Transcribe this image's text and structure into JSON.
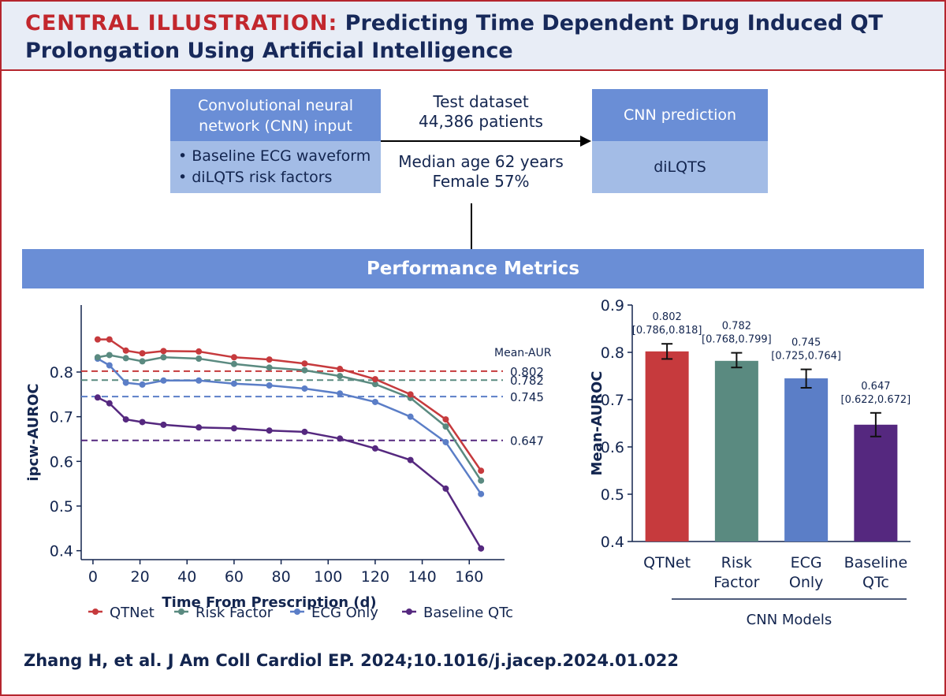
{
  "header": {
    "title_prefix": "CENTRAL ILLUSTRATION:",
    "title_line1": "Predicting Time Dependent Drug Induced QT",
    "title_line2": "Prolongation Using Artificial Intelligence"
  },
  "flow": {
    "input_head_line1": "Convolutional neural",
    "input_head_line2": "network (CNN) input",
    "input_item1": "• Baseline ECG waveform",
    "input_item2": "• diLQTS risk factors",
    "test_line1": "Test dataset",
    "test_line2": "44,386 patients",
    "demo_line1": "Median age 62 years",
    "demo_line2": "Female 57%",
    "pred_head": "CNN prediction",
    "pred_body": "diLQTS"
  },
  "performance_label": "Performance Metrics",
  "colors": {
    "qtnet": "#c63a3d",
    "risk": "#5a8a80",
    "ecg": "#5b7ec7",
    "baseline": "#55287f",
    "axis": "#13254f"
  },
  "chart_data": [
    {
      "type": "line",
      "title": "",
      "xlabel": "Time From Prescription (d)",
      "ylabel": "ipcw-AUROC",
      "xlim": [
        -5,
        175
      ],
      "ylim": [
        0.38,
        0.95
      ],
      "xticks": [
        0,
        20,
        40,
        60,
        80,
        100,
        120,
        140,
        160
      ],
      "yticks": [
        0.4,
        0.5,
        0.6,
        0.7,
        0.8
      ],
      "x": [
        2,
        7,
        14,
        21,
        30,
        45,
        60,
        75,
        90,
        105,
        120,
        135,
        150,
        165
      ],
      "series": [
        {
          "name": "QTNet",
          "color_key": "qtnet",
          "values": [
            0.873,
            0.873,
            0.848,
            0.842,
            0.847,
            0.846,
            0.833,
            0.828,
            0.819,
            0.807,
            0.784,
            0.75,
            0.694,
            0.579
          ]
        },
        {
          "name": "Risk Factor",
          "color_key": "risk",
          "values": [
            0.833,
            0.838,
            0.831,
            0.824,
            0.833,
            0.83,
            0.818,
            0.81,
            0.804,
            0.791,
            0.773,
            0.742,
            0.678,
            0.557
          ]
        },
        {
          "name": "ECG Only",
          "color_key": "ecg",
          "values": [
            0.83,
            0.815,
            0.776,
            0.772,
            0.781,
            0.781,
            0.774,
            0.77,
            0.763,
            0.752,
            0.733,
            0.7,
            0.643,
            0.527
          ]
        },
        {
          "name": "Baseline QTc",
          "color_key": "baseline",
          "values": [
            0.743,
            0.73,
            0.694,
            0.688,
            0.682,
            0.676,
            0.674,
            0.669,
            0.666,
            0.651,
            0.629,
            0.603,
            0.539,
            0.405
          ]
        }
      ],
      "reference_lines": [
        {
          "name": "QTNet",
          "value": 0.802,
          "label": "0.802",
          "color_key": "qtnet"
        },
        {
          "name": "Risk Factor",
          "value": 0.782,
          "label": "0.782",
          "color_key": "risk"
        },
        {
          "name": "ECG Only",
          "value": 0.745,
          "label": "0.745",
          "color_key": "ecg"
        },
        {
          "name": "Baseline QTc",
          "value": 0.647,
          "label": "0.647",
          "color_key": "baseline"
        }
      ],
      "reference_title": "Mean-AUROC",
      "legend": [
        "QTNet",
        "Risk Factor",
        "ECG Only",
        "Baseline QTc"
      ],
      "legend_position": "bottom",
      "grid": false
    },
    {
      "type": "bar",
      "title": "",
      "xlabel": "CNN Models",
      "ylabel": "Mean-AUROC",
      "ylim": [
        0.4,
        0.9
      ],
      "yticks": [
        0.4,
        0.5,
        0.6,
        0.7,
        0.8,
        0.9
      ],
      "categories": [
        [
          "QTNet"
        ],
        [
          "Risk",
          "Factor"
        ],
        [
          "ECG",
          "Only"
        ],
        [
          "Baseline",
          "QTc"
        ]
      ],
      "values": [
        0.802,
        0.782,
        0.745,
        0.647
      ],
      "ci_low": [
        0.786,
        0.768,
        0.725,
        0.622
      ],
      "ci_high": [
        0.818,
        0.799,
        0.764,
        0.672
      ],
      "value_labels": [
        "0.802",
        "0.782",
        "0.745",
        "0.647"
      ],
      "ci_labels": [
        "[0.786,0.818]",
        "[0.768,0.799]",
        "[0.725,0.764]",
        "[0.622,0.672]"
      ],
      "color_keys": [
        "qtnet",
        "risk",
        "ecg",
        "baseline"
      ],
      "grid": false
    }
  ],
  "citation": "Zhang H, et al. J Am Coll Cardiol EP. 2024;10.1016/j.jacep.2024.01.022"
}
